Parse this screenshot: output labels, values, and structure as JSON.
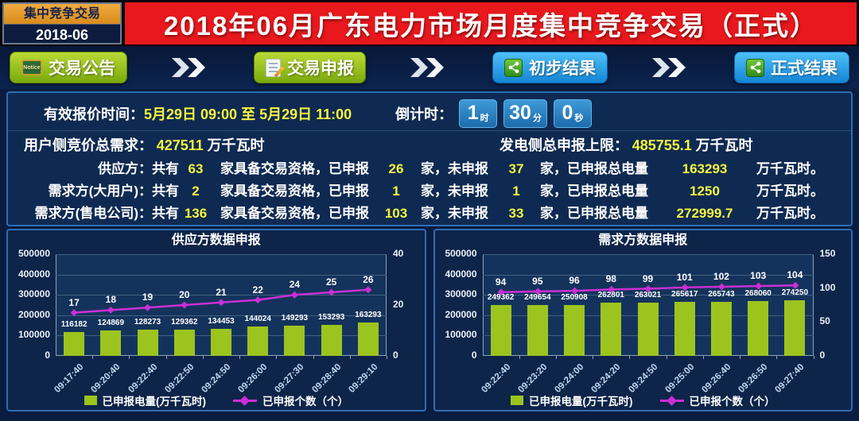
{
  "badge": {
    "title": "集中竞争交易",
    "period": "2018-06"
  },
  "banner": {
    "title": "2018年06月广东电力市场月度集中竞争交易（正式）"
  },
  "nav": {
    "buttons": [
      {
        "label": "交易公告",
        "icon": "notice-icon",
        "style": "green"
      },
      {
        "label": "交易申报",
        "icon": "document-edit-icon",
        "style": "green"
      },
      {
        "label": "初步结果",
        "icon": "share-icon",
        "style": "blue"
      },
      {
        "label": "正式结果",
        "icon": "share-icon",
        "style": "blue"
      }
    ],
    "notice_icon_text": "Notice"
  },
  "info": {
    "valid_time_label": "有效报价时间：",
    "valid_time_value": "5月29日 09:00 至 5月29日 11:00",
    "countdown": {
      "label": "倒计时：",
      "hours": "1",
      "hours_unit": "时",
      "minutes": "30",
      "minutes_unit": "分",
      "seconds": "0",
      "seconds_unit": "秒"
    },
    "demand_total": {
      "label": "用户侧竞价总需求：",
      "value": "427511",
      "unit": " 万千瓦时"
    },
    "supply_cap": {
      "label": "发电侧总申报上限：",
      "value": "485755.1",
      "unit": " 万千瓦时"
    },
    "segments": {
      "s1": "：共有",
      "s2": "家具备交易资格，已申报",
      "s3": "家，未申报",
      "s4": "家，已申报总电量",
      "s5": "万千瓦时。"
    },
    "parties": [
      {
        "name": "供应方",
        "total": "63",
        "declared": "26",
        "undeclared": "37",
        "energy": "163293"
      },
      {
        "name": "需求方(大用户)",
        "total": "2",
        "declared": "1",
        "undeclared": "1",
        "energy": "1250"
      },
      {
        "name": "需求方(售电公司)",
        "total": "136",
        "declared": "103",
        "undeclared": "33",
        "energy": "272999.7"
      }
    ]
  },
  "colors": {
    "banner_red": "#e8181d",
    "accent_yellow": "#f6f63c",
    "bar_green": "#9cc41e",
    "line_magenta": "#cb2fd4",
    "button_green": "#8ab515",
    "button_blue": "#1f9ae0"
  },
  "chart_data": [
    {
      "type": "bar+line",
      "title": "供应方数据申报",
      "categories": [
        "09:17:40",
        "09:20:40",
        "09:22:40",
        "09:22:50",
        "09:24:50",
        "09:26:00",
        "09:27:30",
        "09:28:40",
        "09:29:10"
      ],
      "series": [
        {
          "name": "已申报电量(万千瓦时)",
          "type": "bar",
          "axis": "left",
          "color": "#9cc41e",
          "values": [
            116182,
            124869,
            128273,
            129362,
            134453,
            144024,
            149293,
            153293,
            163293
          ]
        },
        {
          "name": "已申报个数（个）",
          "type": "line",
          "axis": "right",
          "color": "#cb2fd4",
          "values": [
            17,
            18,
            19,
            20,
            21,
            22,
            24,
            25,
            26
          ]
        }
      ],
      "left_axis": {
        "min": 0,
        "max": 500000,
        "ticks": [
          0,
          100000,
          200000,
          300000,
          400000,
          500000
        ]
      },
      "right_axis": {
        "min": 0,
        "max": 40,
        "ticks": [
          0,
          20,
          40
        ]
      },
      "grid": true,
      "legend_position": "bottom"
    },
    {
      "type": "bar+line",
      "title": "需求方数据申报",
      "categories": [
        "09:22:40",
        "09:23:20",
        "09:24:00",
        "09:24:20",
        "09:24:50",
        "09:25:00",
        "09:26:40",
        "09:26:50",
        "09:27:40"
      ],
      "series": [
        {
          "name": "已申报电量(万千瓦时)",
          "type": "bar",
          "axis": "left",
          "color": "#9cc41e",
          "values": [
            249362,
            249654,
            250908,
            262801,
            263021,
            265617,
            265743,
            268060,
            274250
          ]
        },
        {
          "name": "已申报个数（个）",
          "type": "line",
          "axis": "right",
          "color": "#cb2fd4",
          "values": [
            94,
            95,
            96,
            98,
            99,
            101,
            102,
            103,
            104
          ]
        }
      ],
      "left_axis": {
        "min": 0,
        "max": 500000,
        "ticks": [
          0,
          100000,
          200000,
          300000,
          400000,
          500000
        ]
      },
      "right_axis": {
        "min": 0,
        "max": 150,
        "ticks": [
          0,
          50,
          100,
          150
        ]
      },
      "grid": true,
      "legend_position": "bottom"
    }
  ]
}
